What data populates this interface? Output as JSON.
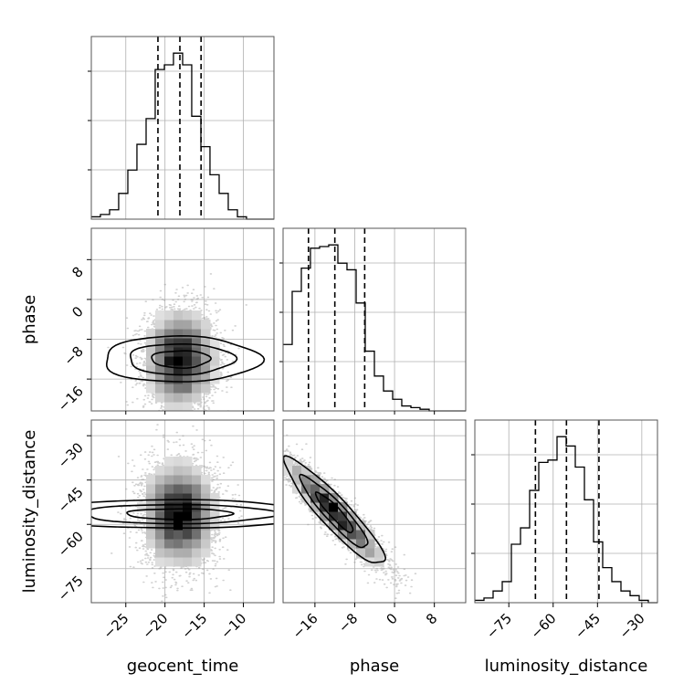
{
  "chart_data": {
    "type": "corner",
    "parameters": [
      "geocent_time",
      "phase",
      "luminosity_distance"
    ],
    "ticks": {
      "geocent_time": [
        -25,
        -20,
        -15,
        -10
      ],
      "phase": [
        -16,
        -8,
        0,
        8
      ],
      "luminosity_distance": [
        -75,
        -60,
        -45,
        -30
      ]
    },
    "ranges": {
      "geocent_time": [
        -29.4,
        -6.1
      ],
      "phase": [
        -22.4,
        14.3
      ],
      "luminosity_distance": [
        -86.5,
        -24.7
      ]
    },
    "quantiles": {
      "geocent_time": [
        -20.9,
        -18.1,
        -15.4
      ],
      "phase": [
        -17.3,
        -12.0,
        -6.0
      ],
      "luminosity_distance": [
        -66.0,
        -55.5,
        -44.5
      ]
    },
    "histograms": {
      "geocent_time": {
        "bin_edges": [
          -29.4,
          -28.24,
          -27.07,
          -25.91,
          -24.74,
          -23.58,
          -22.41,
          -21.25,
          -20.08,
          -18.92,
          -17.75,
          -16.59,
          -15.42,
          -14.26,
          -13.09,
          -11.93,
          -10.76,
          -9.6,
          -8.43,
          -7.27,
          -6.1
        ],
        "counts": [
          1,
          2,
          4,
          11,
          21,
          32,
          43,
          64,
          66,
          71,
          66,
          44,
          31,
          19,
          11,
          4,
          1,
          0,
          0,
          0
        ]
      },
      "phase": {
        "bin_edges": [
          -22.4,
          -20.57,
          -18.73,
          -16.9,
          -15.06,
          -13.23,
          -11.39,
          -9.56,
          -7.72,
          -5.89,
          -4.05,
          -2.22,
          -0.38,
          1.45,
          3.29,
          5.12,
          6.96,
          8.79,
          10.63,
          12.46,
          14.3
        ],
        "counts": [
          40,
          72,
          86,
          98,
          99,
          100,
          89,
          85,
          65,
          36,
          21,
          12,
          7,
          3,
          2,
          1,
          0,
          0,
          0,
          0
        ]
      },
      "luminosity_distance": {
        "bin_edges": [
          -86.5,
          -83.41,
          -80.32,
          -77.23,
          -74.14,
          -71.05,
          -67.96,
          -64.87,
          -61.78,
          -58.69,
          -55.6,
          -52.51,
          -49.42,
          -46.33,
          -43.24,
          -40.15,
          -37.06,
          -33.97,
          -30.88,
          -27.79,
          -24.7
        ],
        "counts": [
          1,
          2,
          5,
          9,
          25,
          32,
          48,
          60,
          61,
          71,
          67,
          58,
          44,
          26,
          15,
          9,
          5,
          3,
          1,
          0
        ]
      }
    },
    "joint": [
      {
        "x": "geocent_time",
        "y": "phase",
        "center": [
          -18.0,
          -12.0
        ],
        "sigma": [
          2.3,
          5.0
        ],
        "correlation": 0.0
      },
      {
        "x": "geocent_time",
        "y": "luminosity_distance",
        "center": [
          -18.2,
          -56.5
        ],
        "sigma": [
          2.4,
          9.0
        ],
        "correlation": 0.0
      },
      {
        "x": "phase",
        "y": "luminosity_distance",
        "center": [
          -12.0,
          -56.0
        ],
        "sigma": [
          5.0,
          9.0
        ],
        "correlation": -0.92
      }
    ],
    "grid": true,
    "legend": "none"
  }
}
